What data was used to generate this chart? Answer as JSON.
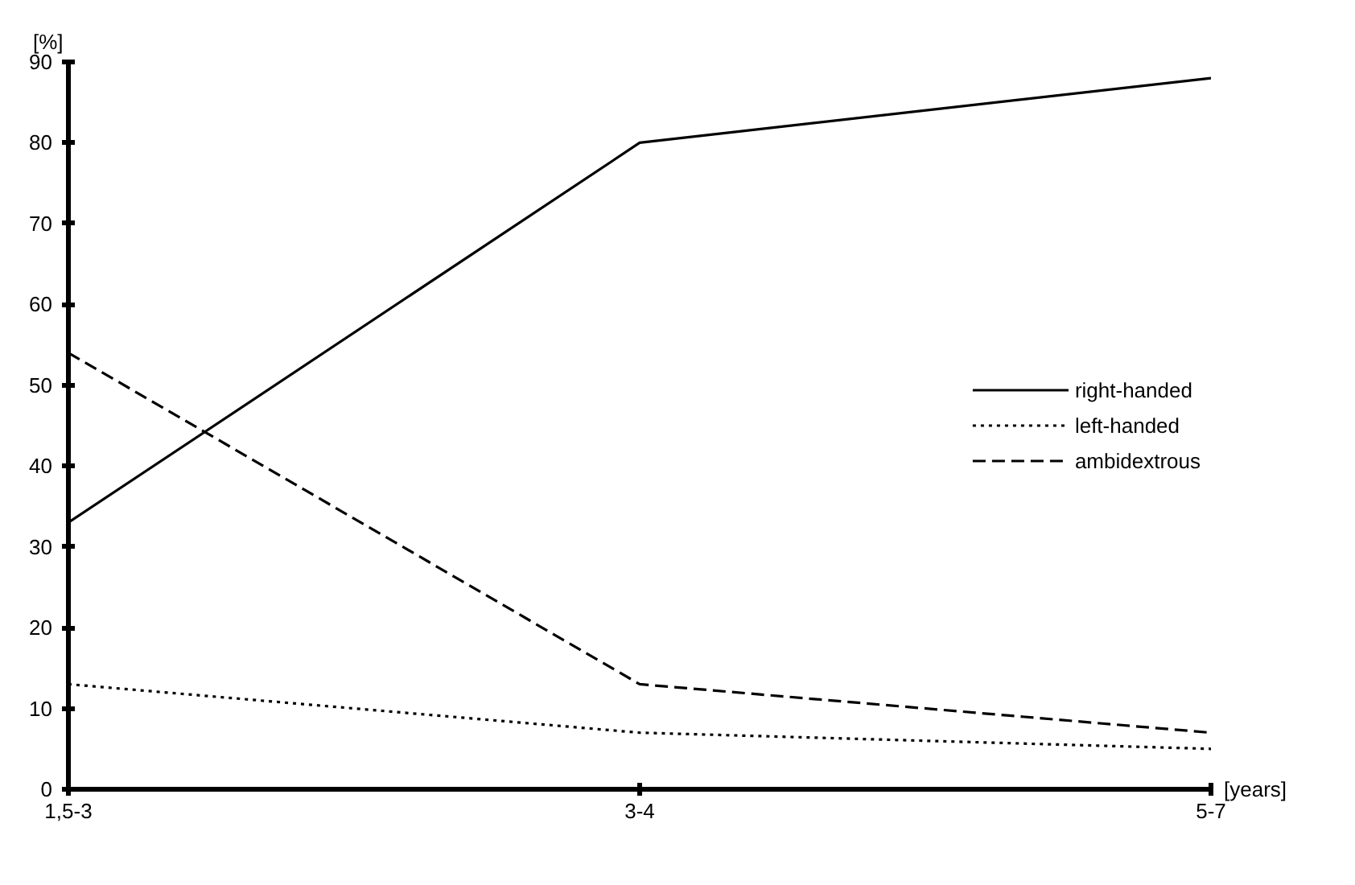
{
  "chart_data": {
    "type": "line",
    "categories": [
      "1,5-3",
      "3-4",
      "5-7"
    ],
    "xlabel": "[years]",
    "ylabel": "[%]",
    "ylim": [
      0,
      90
    ],
    "yticks": [
      0,
      10,
      20,
      30,
      40,
      50,
      60,
      70,
      80,
      90
    ],
    "grid": false,
    "legend": "right",
    "marker": "none",
    "series": [
      {
        "name": "right-handed",
        "color": "#000000",
        "line_style": "solid",
        "values": [
          33,
          80,
          88
        ]
      },
      {
        "name": "left-handed",
        "color": "#000000",
        "line_style": "dotted",
        "values": [
          13,
          7,
          5
        ]
      },
      {
        "name": "ambidextrous",
        "color": "#000000",
        "line_style": "dashed",
        "values": [
          54,
          13,
          7
        ]
      }
    ]
  }
}
